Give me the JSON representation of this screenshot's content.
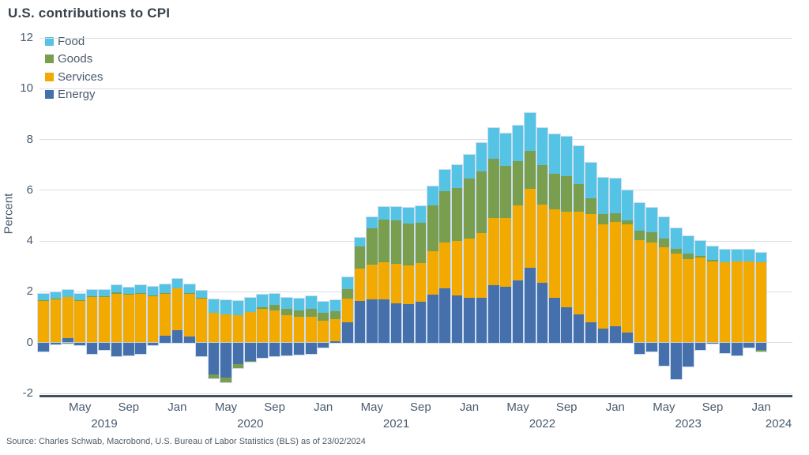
{
  "title": "U.S. contributions to CPI",
  "source": "Source: Charles Schwab, Macrobond, U.S. Bureau of Labor Statistics (BLS) as of 23/02/2024",
  "chart_data": {
    "type": "bar",
    "stacked": true,
    "title": "U.S. contributions to CPI",
    "ylabel": "Percent",
    "ylim": [
      -2,
      12
    ],
    "yticks": [
      12,
      10,
      8,
      6,
      4,
      2,
      0,
      -2
    ],
    "grid": "horizontal",
    "legend_position": "top-left",
    "legend": [
      "Food",
      "Goods",
      "Services",
      "Energy"
    ],
    "series_colors": {
      "Food": "#55C3E4",
      "Goods": "#789E4E",
      "Services": "#F2A900",
      "Energy": "#4670AC"
    },
    "stack_order_bottom_to_top": [
      "Energy",
      "Services",
      "Goods",
      "Food"
    ],
    "x_tick_label_months": [
      "Jan",
      "May",
      "Sep"
    ],
    "year_labels": [
      "2019",
      "2020",
      "2021",
      "2022",
      "2023",
      "2024"
    ],
    "units": "percentage points, contribution to year-over-year CPI",
    "months": [
      {
        "m": "Feb",
        "y": 2019,
        "Energy": -0.35,
        "Services": 1.65,
        "Goods": 0.02,
        "Food": 0.25
      },
      {
        "m": "Mar",
        "y": 2019,
        "Energy": -0.06,
        "Services": 1.7,
        "Goods": 0.02,
        "Food": 0.25
      },
      {
        "m": "Apr",
        "y": 2019,
        "Energy": 0.18,
        "Services": 1.6,
        "Goods": -0.05,
        "Food": 0.3
      },
      {
        "m": "May",
        "y": 2019,
        "Energy": -0.1,
        "Services": 1.63,
        "Goods": 0.04,
        "Food": 0.25
      },
      {
        "m": "Jun",
        "y": 2019,
        "Energy": -0.45,
        "Services": 1.78,
        "Goods": 0.05,
        "Food": 0.25
      },
      {
        "m": "Jul",
        "y": 2019,
        "Energy": -0.3,
        "Services": 1.8,
        "Goods": 0.03,
        "Food": 0.25
      },
      {
        "m": "Aug",
        "y": 2019,
        "Energy": -0.55,
        "Services": 1.92,
        "Goods": 0.05,
        "Food": 0.28
      },
      {
        "m": "Sep",
        "y": 2019,
        "Energy": -0.5,
        "Services": 1.9,
        "Goods": 0.02,
        "Food": 0.25
      },
      {
        "m": "Oct",
        "y": 2019,
        "Energy": -0.45,
        "Services": 1.92,
        "Goods": 0.03,
        "Food": 0.3
      },
      {
        "m": "Nov",
        "y": 2019,
        "Energy": -0.1,
        "Services": 1.83,
        "Goods": 0.02,
        "Food": 0.35
      },
      {
        "m": "Dec",
        "y": 2019,
        "Energy": 0.28,
        "Services": 1.65,
        "Goods": 0.02,
        "Food": 0.35
      },
      {
        "m": "Jan",
        "y": 2020,
        "Energy": 0.5,
        "Services": 1.63,
        "Goods": 0.02,
        "Food": 0.35
      },
      {
        "m": "Feb",
        "y": 2020,
        "Energy": 0.25,
        "Services": 1.68,
        "Goods": 0.02,
        "Food": 0.35
      },
      {
        "m": "Mar",
        "y": 2020,
        "Energy": -0.55,
        "Services": 1.73,
        "Goods": 0.02,
        "Food": 0.3
      },
      {
        "m": "Apr",
        "y": 2020,
        "Energy": -1.25,
        "Services": 1.18,
        "Goods": -0.15,
        "Food": 0.52
      },
      {
        "m": "May",
        "y": 2020,
        "Energy": -1.38,
        "Services": 1.1,
        "Goods": -0.18,
        "Food": 0.58
      },
      {
        "m": "Jun",
        "y": 2020,
        "Energy": -0.85,
        "Services": 1.08,
        "Goods": -0.15,
        "Food": 0.55
      },
      {
        "m": "Jul",
        "y": 2020,
        "Energy": -0.72,
        "Services": 1.2,
        "Goods": -0.05,
        "Food": 0.55
      },
      {
        "m": "Aug",
        "y": 2020,
        "Energy": -0.6,
        "Services": 1.33,
        "Goods": 0.05,
        "Food": 0.5
      },
      {
        "m": "Sep",
        "y": 2020,
        "Energy": -0.55,
        "Services": 1.28,
        "Goods": 0.2,
        "Food": 0.45
      },
      {
        "m": "Oct",
        "y": 2020,
        "Energy": -0.5,
        "Services": 1.08,
        "Goods": 0.25,
        "Food": 0.45
      },
      {
        "m": "Nov",
        "y": 2020,
        "Energy": -0.48,
        "Services": 1.02,
        "Goods": 0.25,
        "Food": 0.45
      },
      {
        "m": "Dec",
        "y": 2020,
        "Energy": -0.45,
        "Services": 1.03,
        "Goods": 0.3,
        "Food": 0.5
      },
      {
        "m": "Jan",
        "y": 2021,
        "Energy": -0.2,
        "Services": 0.85,
        "Goods": 0.32,
        "Food": 0.45
      },
      {
        "m": "Feb",
        "y": 2021,
        "Energy": 0.05,
        "Services": 0.88,
        "Goods": 0.3,
        "Food": 0.45
      },
      {
        "m": "Mar",
        "y": 2021,
        "Energy": 0.8,
        "Services": 0.93,
        "Goods": 0.37,
        "Food": 0.48
      },
      {
        "m": "Apr",
        "y": 2021,
        "Energy": 1.65,
        "Services": 1.25,
        "Goods": 0.88,
        "Food": 0.35
      },
      {
        "m": "May",
        "y": 2021,
        "Energy": 1.7,
        "Services": 1.36,
        "Goods": 1.44,
        "Food": 0.45
      },
      {
        "m": "Jun",
        "y": 2021,
        "Energy": 1.7,
        "Services": 1.45,
        "Goods": 1.7,
        "Food": 0.5
      },
      {
        "m": "Jul",
        "y": 2021,
        "Energy": 1.55,
        "Services": 1.55,
        "Goods": 1.7,
        "Food": 0.55
      },
      {
        "m": "Aug",
        "y": 2021,
        "Energy": 1.5,
        "Services": 1.55,
        "Goods": 1.65,
        "Food": 0.6
      },
      {
        "m": "Sep",
        "y": 2021,
        "Energy": 1.6,
        "Services": 1.53,
        "Goods": 1.6,
        "Food": 0.65
      },
      {
        "m": "Oct",
        "y": 2021,
        "Energy": 1.9,
        "Services": 1.7,
        "Goods": 1.8,
        "Food": 0.75
      },
      {
        "m": "Nov",
        "y": 2021,
        "Energy": 2.15,
        "Services": 1.8,
        "Goods": 2.0,
        "Food": 0.85
      },
      {
        "m": "Dec",
        "y": 2021,
        "Energy": 1.85,
        "Services": 2.15,
        "Goods": 2.1,
        "Food": 0.9
      },
      {
        "m": "Jan",
        "y": 2022,
        "Energy": 1.75,
        "Services": 2.35,
        "Goods": 2.35,
        "Food": 0.95
      },
      {
        "m": "Feb",
        "y": 2022,
        "Energy": 1.75,
        "Services": 2.55,
        "Goods": 2.45,
        "Food": 1.1
      },
      {
        "m": "Mar",
        "y": 2022,
        "Energy": 2.25,
        "Services": 2.65,
        "Goods": 2.35,
        "Food": 1.2
      },
      {
        "m": "Apr",
        "y": 2022,
        "Energy": 2.2,
        "Services": 2.7,
        "Goods": 2.05,
        "Food": 1.3
      },
      {
        "m": "May",
        "y": 2022,
        "Energy": 2.45,
        "Services": 2.95,
        "Goods": 1.75,
        "Food": 1.4
      },
      {
        "m": "Jun",
        "y": 2022,
        "Energy": 2.95,
        "Services": 3.1,
        "Goods": 1.5,
        "Food": 1.5
      },
      {
        "m": "Jul",
        "y": 2022,
        "Energy": 2.35,
        "Services": 3.1,
        "Goods": 1.55,
        "Food": 1.45
      },
      {
        "m": "Aug",
        "y": 2022,
        "Energy": 1.75,
        "Services": 3.5,
        "Goods": 1.4,
        "Food": 1.55
      },
      {
        "m": "Sep",
        "y": 2022,
        "Energy": 1.4,
        "Services": 3.75,
        "Goods": 1.4,
        "Food": 1.55
      },
      {
        "m": "Oct",
        "y": 2022,
        "Energy": 1.1,
        "Services": 4.05,
        "Goods": 1.1,
        "Food": 1.5
      },
      {
        "m": "Nov",
        "y": 2022,
        "Energy": 0.8,
        "Services": 4.25,
        "Goods": 0.65,
        "Food": 1.4
      },
      {
        "m": "Dec",
        "y": 2022,
        "Energy": 0.55,
        "Services": 4.1,
        "Goods": 0.4,
        "Food": 1.45
      },
      {
        "m": "Jan",
        "y": 2023,
        "Energy": 0.65,
        "Services": 4.1,
        "Goods": 0.35,
        "Food": 1.35
      },
      {
        "m": "Feb",
        "y": 2023,
        "Energy": 0.4,
        "Services": 4.25,
        "Goods": 0.15,
        "Food": 1.2
      },
      {
        "m": "Mar",
        "y": 2023,
        "Energy": -0.45,
        "Services": 4.05,
        "Goods": 0.35,
        "Food": 1.1
      },
      {
        "m": "Apr",
        "y": 2023,
        "Energy": -0.35,
        "Services": 3.95,
        "Goods": 0.4,
        "Food": 0.95
      },
      {
        "m": "May",
        "y": 2023,
        "Energy": -0.9,
        "Services": 3.75,
        "Goods": 0.35,
        "Food": 0.85
      },
      {
        "m": "Jun",
        "y": 2023,
        "Energy": -1.45,
        "Services": 3.5,
        "Goods": 0.2,
        "Food": 0.8
      },
      {
        "m": "Jul",
        "y": 2023,
        "Energy": -0.95,
        "Services": 3.3,
        "Goods": 0.2,
        "Food": 0.7
      },
      {
        "m": "Aug",
        "y": 2023,
        "Energy": -0.3,
        "Services": 3.35,
        "Goods": 0.05,
        "Food": 0.6
      },
      {
        "m": "Sep",
        "y": 2023,
        "Energy": -0.05,
        "Services": 3.2,
        "Goods": 0.05,
        "Food": 0.55
      },
      {
        "m": "Oct",
        "y": 2023,
        "Energy": -0.4,
        "Services": 3.15,
        "Goods": 0.0,
        "Food": 0.5
      },
      {
        "m": "Nov",
        "y": 2023,
        "Energy": -0.5,
        "Services": 3.2,
        "Goods": 0.0,
        "Food": 0.45
      },
      {
        "m": "Dec",
        "y": 2023,
        "Energy": -0.2,
        "Services": 3.2,
        "Goods": 0.0,
        "Food": 0.45
      },
      {
        "m": "Jan",
        "y": 2024,
        "Energy": -0.3,
        "Services": 3.15,
        "Goods": -0.05,
        "Food": 0.4
      }
    ]
  }
}
